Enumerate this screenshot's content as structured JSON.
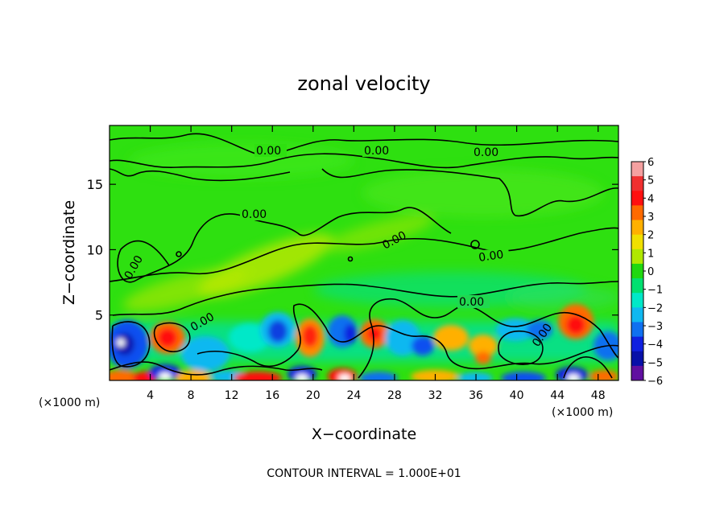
{
  "chart_data": {
    "type": "heatmap",
    "title": "zonal velocity",
    "xlabel": "X−coordinate",
    "ylabel": "Z−coordinate",
    "x_unit_label": "(×1000 m)",
    "x_unit_label_right": "(×1000 m)",
    "footer": "CONTOUR INTERVAL = 1.000E+01",
    "xlim": [
      0,
      50
    ],
    "ylim": [
      0,
      19.5
    ],
    "x_ticks": [
      4,
      8,
      12,
      16,
      20,
      24,
      28,
      32,
      36,
      40,
      44,
      48
    ],
    "y_ticks": [
      5,
      10,
      15
    ],
    "colorbar": {
      "ticks": [
        "6",
        "5",
        "4",
        "3",
        "2",
        "1",
        "0",
        "−1",
        "−2",
        "−3",
        "−4",
        "−5",
        "−6"
      ],
      "range": [
        -6,
        6
      ],
      "colors": [
        "#f4a0a0",
        "#f03030",
        "#ff1010",
        "#ff6a00",
        "#ffb000",
        "#f0e000",
        "#b0e800",
        "#20d810",
        "#00e070",
        "#00e8c8",
        "#10b8f0",
        "#1070f0",
        "#1020e0",
        "#0810a8",
        "#6010a0"
      ]
    },
    "contour_label": "0.00",
    "grid": false,
    "legend": "colorbar-right"
  }
}
